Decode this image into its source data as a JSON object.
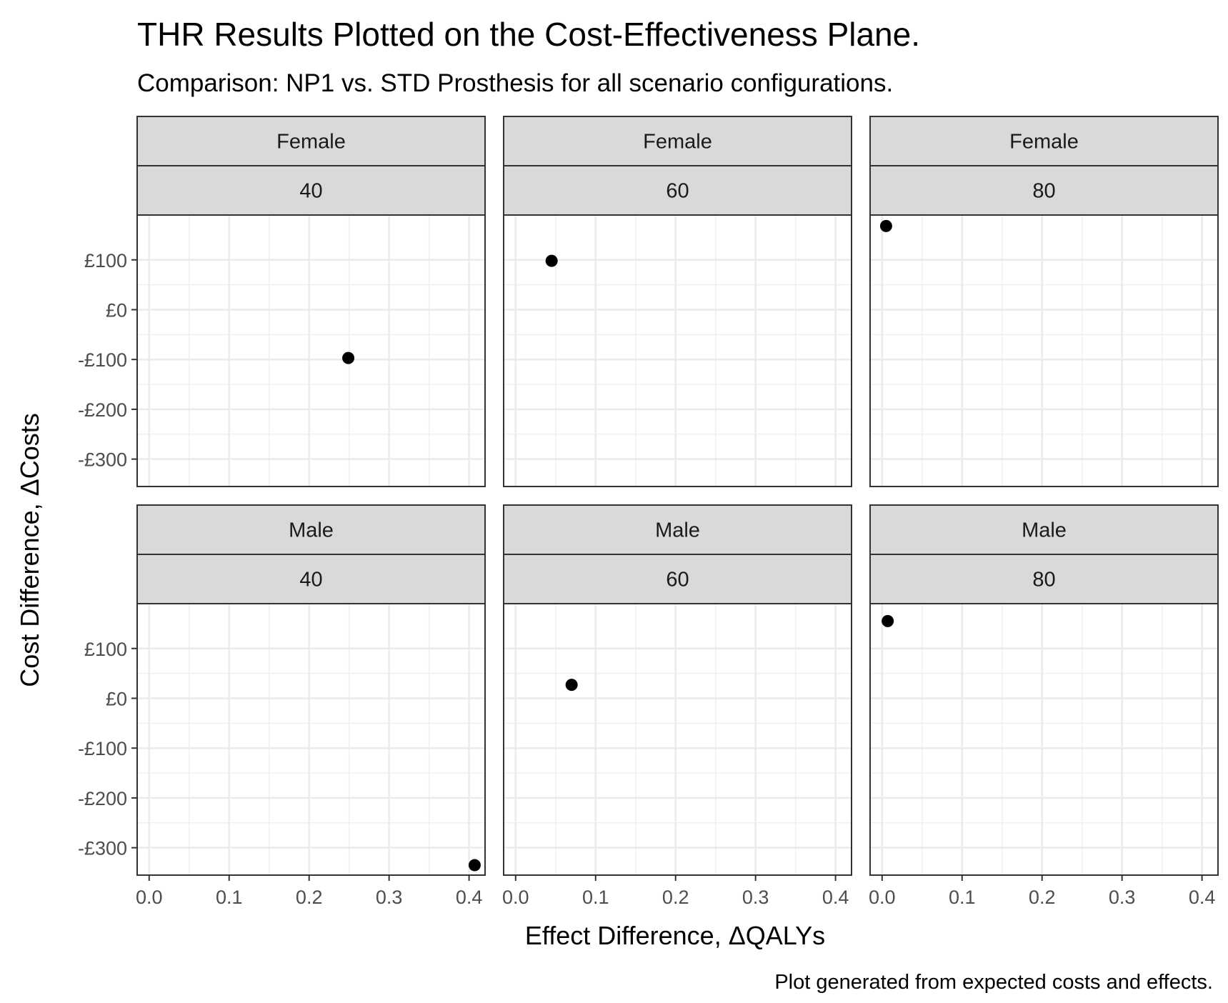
{
  "title": "THR Results Plotted on the Cost-Effectiveness Plane.",
  "subtitle": "Comparison: NP1 vs. STD Prosthesis for all scenario configurations.",
  "caption": "Plot generated from expected costs and effects.",
  "chart_data": {
    "type": "scatter",
    "xlabel": "Effect Difference,  ΔQALYs",
    "ylabel": "Cost Difference,  ΔCosts",
    "xlim": [
      -0.015,
      0.42
    ],
    "ylim": [
      -355,
      190
    ],
    "x_ticks": [
      0.0,
      0.1,
      0.2,
      0.3,
      0.4
    ],
    "x_tick_labels": [
      "0.0",
      "0.1",
      "0.2",
      "0.3",
      "0.4"
    ],
    "y_ticks": [
      100,
      0,
      -100,
      -200,
      -300
    ],
    "y_tick_labels": [
      "£100",
      "£0",
      "-£100",
      "-£200",
      "-£300"
    ],
    "grid": true,
    "point_color": "#000000",
    "panels": [
      {
        "sex": "Female",
        "age": "40",
        "x": 0.249,
        "y": -97
      },
      {
        "sex": "Female",
        "age": "60",
        "x": 0.045,
        "y": 98
      },
      {
        "sex": "Female",
        "age": "80",
        "x": 0.005,
        "y": 168
      },
      {
        "sex": "Male",
        "age": "40",
        "x": 0.407,
        "y": -335
      },
      {
        "sex": "Male",
        "age": "60",
        "x": 0.07,
        "y": 27
      },
      {
        "sex": "Male",
        "age": "80",
        "x": 0.007,
        "y": 155
      }
    ]
  }
}
